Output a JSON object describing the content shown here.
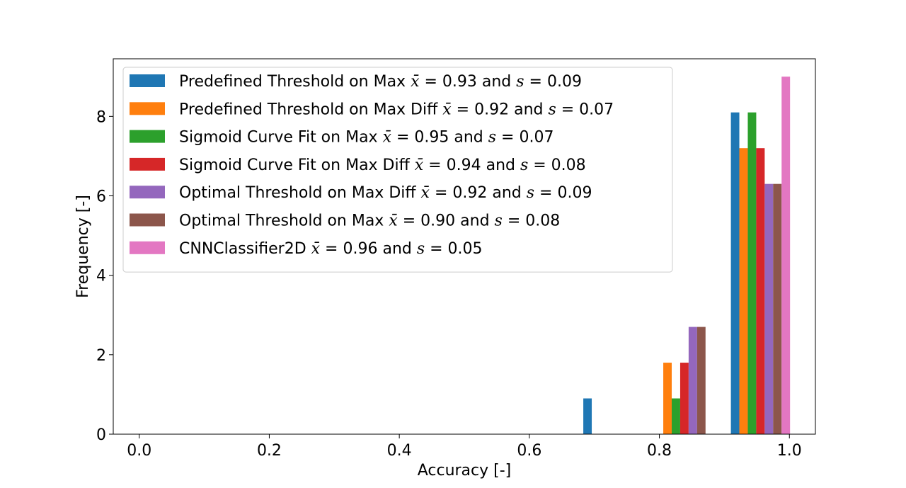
{
  "chart_data": {
    "type": "bar",
    "title": "",
    "xlabel": "Accuracy [-]",
    "ylabel": "Frequency [-]",
    "xlim": [
      -0.04,
      1.04
    ],
    "ylim": [
      0,
      9.45
    ],
    "xticks": [
      0.0,
      0.2,
      0.4,
      0.6,
      0.8,
      1.0
    ],
    "xtick_labels": [
      "0.0",
      "0.2",
      "0.4",
      "0.6",
      "0.8",
      "1.0"
    ],
    "yticks": [
      0,
      2,
      4,
      6,
      8
    ],
    "ytick_labels": [
      "0",
      "2",
      "4",
      "6",
      "8"
    ],
    "grid": false,
    "legend_position": "top-left",
    "series": [
      {
        "name": "Predefined Threshold on Max",
        "mean": "0.93",
        "std": "0.09",
        "color": "#1f77b4",
        "bars": [
          {
            "x": 0.683,
            "value": 0.9
          },
          {
            "x": 0.91,
            "value": 8.1
          }
        ]
      },
      {
        "name": "Predefined Threshold on Max Diff",
        "mean": "0.92",
        "std": "0.07",
        "color": "#ff7f0e",
        "bars": [
          {
            "x": 0.806,
            "value": 1.8
          },
          {
            "x": 0.923,
            "value": 7.2
          }
        ]
      },
      {
        "name": "Sigmoid Curve Fit on Max",
        "mean": "0.95",
        "std": "0.07",
        "color": "#2ca02c",
        "bars": [
          {
            "x": 0.819,
            "value": 0.9
          },
          {
            "x": 0.936,
            "value": 8.1
          }
        ]
      },
      {
        "name": "Sigmoid Curve Fit on Max Diff",
        "mean": "0.94",
        "std": "0.08",
        "color": "#d62728",
        "bars": [
          {
            "x": 0.832,
            "value": 1.8
          },
          {
            "x": 0.949,
            "value": 7.2
          }
        ]
      },
      {
        "name": "Optimal Threshold on Max Diff",
        "mean": "0.92",
        "std": "0.09",
        "color": "#9467bd",
        "bars": [
          {
            "x": 0.845,
            "value": 2.7
          },
          {
            "x": 0.962,
            "value": 6.3
          }
        ]
      },
      {
        "name": "Optimal Threshold on Max",
        "mean": "0.90",
        "std": "0.08",
        "color": "#8c564b",
        "bars": [
          {
            "x": 0.858,
            "value": 2.7
          },
          {
            "x": 0.975,
            "value": 6.3
          }
        ]
      },
      {
        "name": "CNNClassifier2D",
        "mean": "0.96",
        "std": "0.05",
        "color": "#e377c2",
        "bars": [
          {
            "x": 0.988,
            "value": 9.0
          }
        ]
      }
    ],
    "legend_connector": "and"
  }
}
